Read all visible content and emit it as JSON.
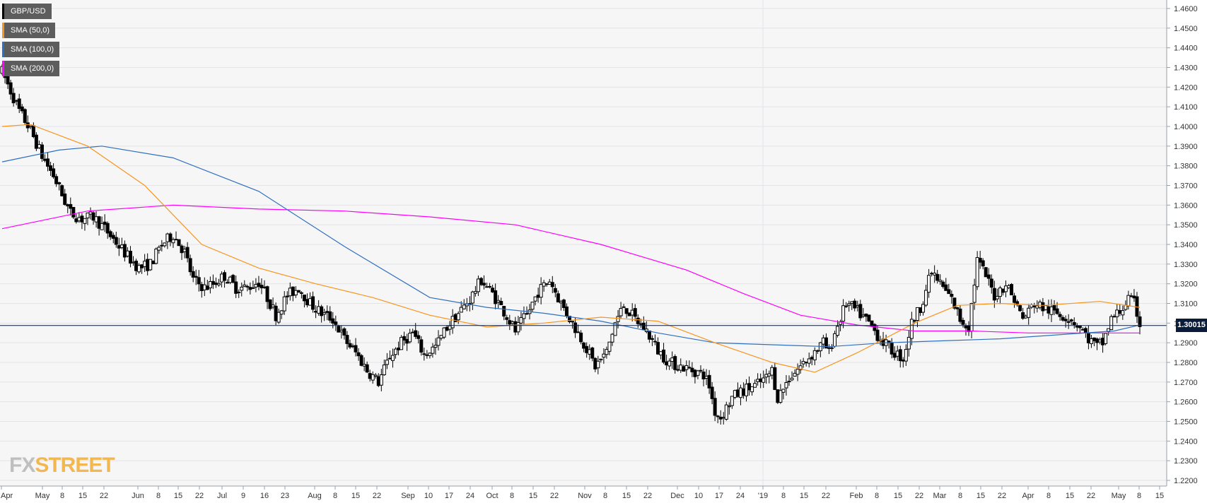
{
  "legend": [
    {
      "label": "GBP/USD",
      "color": "#000000"
    },
    {
      "label": "SMA (50,0)",
      "color": "#f7941d"
    },
    {
      "label": "SMA (100,0)",
      "color": "#2f6fbf"
    },
    {
      "label": "SMA (200,0)",
      "color": "#ff00ff"
    }
  ],
  "current_price_label": "1.30015",
  "logo": {
    "fx": "FX",
    "street": "STREET"
  },
  "chart_data": {
    "type": "candlestick",
    "symbol": "GBP/USD",
    "y_axis": {
      "min": 1.22,
      "max": 1.46,
      "ticks": [
        "1.2200",
        "1.2300",
        "1.2400",
        "1.2500",
        "1.2600",
        "1.2700",
        "1.2800",
        "1.2900",
        "1.3000",
        "1.3100",
        "1.3200",
        "1.3300",
        "1.3400",
        "1.3500",
        "1.3600",
        "1.3700",
        "1.3800",
        "1.3900",
        "1.4000",
        "1.4100",
        "1.4200",
        "1.4300",
        "1.4400",
        "1.4500",
        "1.4600"
      ]
    },
    "x_axis": {
      "ticks": [
        "Apr",
        "May",
        "8",
        "15",
        "22",
        "Jun",
        "8",
        "15",
        "22",
        "Jul",
        "9",
        "16",
        "23",
        "Aug",
        "8",
        "15",
        "22",
        "Sep",
        "10",
        "17",
        "24",
        "Oct",
        "8",
        "15",
        "22",
        "Nov",
        "8",
        "15",
        "22",
        "Dec",
        "10",
        "17",
        "24",
        "'19",
        "8",
        "15",
        "22",
        "Feb",
        "8",
        "15",
        "22",
        "Mar",
        "8",
        "15",
        "22",
        "Apr",
        "8",
        "15",
        "22",
        "May",
        "8",
        "15"
      ]
    },
    "current_price": 1.30015,
    "grid": true,
    "watermark": "FXSTREET",
    "candle_anchors": [
      [
        0,
        1.428
      ],
      [
        3,
        1.418
      ],
      [
        6,
        1.408
      ],
      [
        10,
        1.398
      ],
      [
        14,
        1.385
      ],
      [
        18,
        1.375
      ],
      [
        22,
        1.362
      ],
      [
        24,
        1.356
      ],
      [
        28,
        1.353
      ],
      [
        32,
        1.354
      ],
      [
        36,
        1.348
      ],
      [
        40,
        1.341
      ],
      [
        44,
        1.334
      ],
      [
        48,
        1.328
      ],
      [
        52,
        1.33
      ],
      [
        56,
        1.34
      ],
      [
        60,
        1.345
      ],
      [
        64,
        1.336
      ],
      [
        67,
        1.322
      ],
      [
        71,
        1.318
      ],
      [
        74,
        1.32
      ],
      [
        78,
        1.324
      ],
      [
        82,
        1.318
      ],
      [
        86,
        1.318
      ],
      [
        90,
        1.321
      ],
      [
        93,
        1.313
      ],
      [
        96,
        1.304
      ],
      [
        100,
        1.314
      ],
      [
        104,
        1.318
      ],
      [
        108,
        1.31
      ],
      [
        112,
        1.305
      ],
      [
        116,
        1.302
      ],
      [
        120,
        1.292
      ],
      [
        124,
        1.285
      ],
      [
        128,
        1.276
      ],
      [
        132,
        1.27
      ],
      [
        136,
        1.283
      ],
      [
        140,
        1.29
      ],
      [
        144,
        1.295
      ],
      [
        148,
        1.284
      ],
      [
        152,
        1.288
      ],
      [
        156,
        1.298
      ],
      [
        160,
        1.305
      ],
      [
        164,
        1.312
      ],
      [
        168,
        1.322
      ],
      [
        172,
        1.315
      ],
      [
        176,
        1.306
      ],
      [
        180,
        1.296
      ],
      [
        184,
        1.304
      ],
      [
        188,
        1.316
      ],
      [
        192,
        1.322
      ],
      [
        196,
        1.31
      ],
      [
        200,
        1.3
      ],
      [
        204,
        1.29
      ],
      [
        208,
        1.278
      ],
      [
        212,
        1.285
      ],
      [
        215,
        1.3
      ],
      [
        218,
        1.309
      ],
      [
        222,
        1.302
      ],
      [
        226,
        1.296
      ],
      [
        230,
        1.286
      ],
      [
        234,
        1.28
      ],
      [
        238,
        1.278
      ],
      [
        242,
        1.276
      ],
      [
        246,
        1.274
      ],
      [
        248,
        1.268
      ],
      [
        250,
        1.255
      ],
      [
        252,
        1.252
      ],
      [
        256,
        1.262
      ],
      [
        260,
        1.266
      ],
      [
        264,
        1.268
      ],
      [
        268,
        1.272
      ],
      [
        270,
        1.276
      ],
      [
        272,
        1.262
      ],
      [
        276,
        1.272
      ],
      [
        280,
        1.278
      ],
      [
        284,
        1.284
      ],
      [
        288,
        1.29
      ],
      [
        290,
        1.285
      ],
      [
        292,
        1.295
      ],
      [
        296,
        1.31
      ],
      [
        300,
        1.306
      ],
      [
        304,
        1.3
      ],
      [
        308,
        1.292
      ],
      [
        312,
        1.286
      ],
      [
        316,
        1.282
      ],
      [
        319,
        1.3
      ],
      [
        322,
        1.308
      ],
      [
        326,
        1.326
      ],
      [
        330,
        1.318
      ],
      [
        333,
        1.312
      ],
      [
        336,
        1.302
      ],
      [
        339,
        1.298
      ],
      [
        342,
        1.332
      ],
      [
        345,
        1.324
      ],
      [
        348,
        1.314
      ],
      [
        352,
        1.32
      ],
      [
        355,
        1.312
      ],
      [
        358,
        1.302
      ],
      [
        362,
        1.31
      ],
      [
        365,
        1.308
      ],
      [
        368,
        1.306
      ],
      [
        372,
        1.304
      ],
      [
        375,
        1.302
      ],
      [
        378,
        1.298
      ],
      [
        381,
        1.292
      ],
      [
        384,
        1.288
      ],
      [
        386,
        1.29
      ],
      [
        389,
        1.302
      ],
      [
        392,
        1.306
      ],
      [
        395,
        1.312
      ],
      [
        397,
        1.31
      ],
      [
        399,
        1.3
      ]
    ],
    "sma50": [
      [
        0,
        1.4
      ],
      [
        10,
        1.401
      ],
      [
        30,
        1.39
      ],
      [
        50,
        1.37
      ],
      [
        70,
        1.34
      ],
      [
        90,
        1.328
      ],
      [
        110,
        1.32
      ],
      [
        130,
        1.313
      ],
      [
        150,
        1.304
      ],
      [
        170,
        1.298
      ],
      [
        190,
        1.3
      ],
      [
        210,
        1.303
      ],
      [
        230,
        1.301
      ],
      [
        250,
        1.29
      ],
      [
        270,
        1.28
      ],
      [
        285,
        1.275
      ],
      [
        300,
        1.285
      ],
      [
        320,
        1.3
      ],
      [
        335,
        1.309
      ],
      [
        350,
        1.31
      ],
      [
        365,
        1.309
      ],
      [
        385,
        1.311
      ],
      [
        399,
        1.308
      ]
    ],
    "sma100": [
      [
        0,
        1.382
      ],
      [
        20,
        1.388
      ],
      [
        35,
        1.39
      ],
      [
        60,
        1.384
      ],
      [
        90,
        1.367
      ],
      [
        120,
        1.339
      ],
      [
        150,
        1.313
      ],
      [
        170,
        1.308
      ],
      [
        190,
        1.305
      ],
      [
        210,
        1.301
      ],
      [
        230,
        1.295
      ],
      [
        250,
        1.29
      ],
      [
        270,
        1.289
      ],
      [
        290,
        1.288
      ],
      [
        310,
        1.29
      ],
      [
        330,
        1.291
      ],
      [
        350,
        1.292
      ],
      [
        370,
        1.294
      ],
      [
        390,
        1.296
      ],
      [
        399,
        1.299
      ]
    ],
    "sma200": [
      [
        0,
        1.348
      ],
      [
        30,
        1.357
      ],
      [
        60,
        1.36
      ],
      [
        90,
        1.358
      ],
      [
        120,
        1.357
      ],
      [
        150,
        1.354
      ],
      [
        180,
        1.35
      ],
      [
        210,
        1.34
      ],
      [
        240,
        1.327
      ],
      [
        260,
        1.315
      ],
      [
        280,
        1.304
      ],
      [
        300,
        1.299
      ],
      [
        320,
        1.296
      ],
      [
        340,
        1.296
      ],
      [
        360,
        1.295
      ],
      [
        380,
        1.295
      ],
      [
        399,
        1.295
      ]
    ]
  }
}
